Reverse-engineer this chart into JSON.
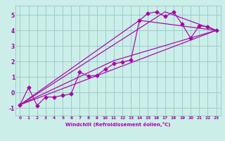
{
  "xlabel": "Windchill (Refroidissement éolien,°C)",
  "background_color": "#cceee8",
  "grid_color": "#99cccc",
  "line_color": "#aa00aa",
  "xlim": [
    -0.5,
    23.5
  ],
  "ylim": [
    -1.5,
    5.6
  ],
  "xticks": [
    0,
    1,
    2,
    3,
    4,
    5,
    6,
    7,
    8,
    9,
    10,
    11,
    12,
    13,
    14,
    15,
    16,
    17,
    18,
    19,
    20,
    21,
    22,
    23
  ],
  "yticks": [
    -1,
    0,
    1,
    2,
    3,
    4,
    5
  ],
  "series1_x": [
    0,
    1,
    2,
    3,
    4,
    5,
    6,
    7,
    8,
    9,
    10,
    11,
    12,
    13,
    14,
    15,
    16,
    17,
    18,
    19,
    20,
    21,
    22,
    23
  ],
  "series1_y": [
    -0.8,
    0.3,
    -0.85,
    -0.3,
    -0.3,
    -0.2,
    -0.1,
    1.3,
    1.05,
    1.1,
    1.5,
    1.85,
    1.95,
    2.1,
    4.65,
    5.1,
    5.2,
    4.9,
    5.2,
    4.4,
    3.5,
    4.3,
    4.25,
    4.0
  ],
  "series2_x": [
    0,
    23
  ],
  "series2_y": [
    -0.8,
    4.0
  ],
  "series3_x": [
    0,
    11,
    23
  ],
  "series3_y": [
    -0.8,
    2.05,
    4.0
  ],
  "series4_x": [
    0,
    14,
    23
  ],
  "series4_y": [
    -0.8,
    4.65,
    4.0
  ],
  "series5_x": [
    0,
    17,
    23
  ],
  "series5_y": [
    -0.8,
    5.2,
    4.0
  ]
}
